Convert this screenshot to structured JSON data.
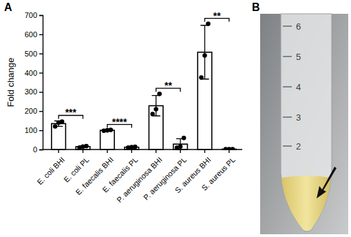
{
  "chart_data": {
    "type": "bar",
    "y_label": "Fold change",
    "categories": [
      "E. coli BHI",
      "E. coli PL",
      "E. faecalis BHI",
      "E. faecalis PL",
      "P. aeruginosa BHI",
      "P. aeruginosa PL",
      "S. aureus BHI",
      "S. aureus PL"
    ],
    "values": [
      135,
      15,
      100,
      12,
      228,
      28,
      507,
      2
    ],
    "error": [
      14,
      4,
      2,
      2,
      53,
      28,
      140,
      1
    ],
    "points": [
      [
        120,
        140,
        145
      ],
      [
        10,
        15,
        18
      ],
      [
        98,
        100,
        102
      ],
      [
        10,
        12,
        14
      ],
      [
        185,
        210,
        290
      ],
      [
        10,
        15,
        60
      ],
      [
        375,
        490,
        655
      ],
      [
        2,
        2,
        2
      ]
    ],
    "color": "#ffffff",
    "marker": "circle",
    "ylim": [
      0,
      700
    ],
    "yticks": [
      0,
      100,
      200,
      300,
      400,
      500,
      600,
      700
    ],
    "grid": false,
    "annotations": [
      {
        "text": "***",
        "between": [
          0,
          1
        ]
      },
      {
        "text": "****",
        "between": [
          2,
          3
        ]
      },
      {
        "text": "**",
        "between": [
          4,
          5
        ]
      },
      {
        "text": "**",
        "between": [
          6,
          7
        ]
      }
    ]
  },
  "panel_labels": [
    "A",
    "B"
  ],
  "tube_graduations": [
    "6",
    "5",
    "4",
    "3",
    "2"
  ]
}
